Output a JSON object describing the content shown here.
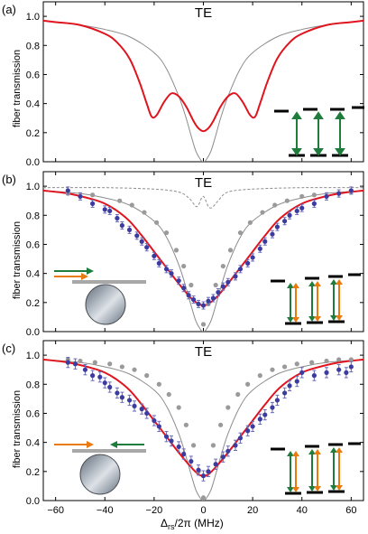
{
  "figure": {
    "xlabel_main": "Δ",
    "xlabel_sub": "rs",
    "xlabel_rest": "/2π (MHz)",
    "ylabel": "fiber transmission",
    "x_ticks": [
      "−60",
      "−40",
      "−20",
      "0",
      "20",
      "40",
      "60"
    ],
    "y_ticks": [
      "0.0",
      "0.2",
      "0.4",
      "0.6",
      "0.8",
      "1.0"
    ],
    "colors": {
      "red": "#e0141e",
      "gray": "#8c8c8c",
      "blue": "#3c3ca0",
      "green": "#1e7d3c",
      "orange": "#e87a10"
    }
  },
  "chart_data": [
    {
      "type": "line",
      "panel_label": "(a)",
      "title": "TE",
      "ylabel": "fiber transmission",
      "xlim": [
        -65,
        65
      ],
      "ylim": [
        0,
        1.1
      ],
      "series": [
        {
          "style": "gray-thin",
          "x": [
            -65,
            -60,
            -50,
            -40,
            -30,
            -20,
            -15,
            -10,
            -7,
            -5,
            -3,
            -1,
            0,
            1,
            3,
            5,
            7,
            10,
            15,
            20,
            30,
            40,
            50,
            60,
            65
          ],
          "y": [
            0.97,
            0.96,
            0.94,
            0.91,
            0.86,
            0.75,
            0.64,
            0.45,
            0.3,
            0.18,
            0.07,
            0.01,
            0,
            0.01,
            0.07,
            0.18,
            0.3,
            0.45,
            0.64,
            0.75,
            0.86,
            0.91,
            0.94,
            0.96,
            0.97
          ]
        },
        {
          "style": "red-thick",
          "x": [
            -65,
            -60,
            -50,
            -40,
            -35,
            -30,
            -26,
            -23,
            -21,
            -19,
            -16,
            -13,
            -10,
            -7,
            -4,
            -2,
            0,
            2,
            4,
            7,
            10,
            13,
            16,
            19,
            21,
            23,
            26,
            30,
            35,
            40,
            50,
            60,
            65
          ],
          "y": [
            0.97,
            0.96,
            0.94,
            0.88,
            0.82,
            0.71,
            0.55,
            0.4,
            0.31,
            0.32,
            0.41,
            0.47,
            0.45,
            0.38,
            0.28,
            0.23,
            0.21,
            0.23,
            0.28,
            0.38,
            0.45,
            0.47,
            0.41,
            0.32,
            0.31,
            0.4,
            0.55,
            0.71,
            0.82,
            0.88,
            0.94,
            0.96,
            0.97
          ]
        }
      ]
    },
    {
      "type": "scatter",
      "panel_label": "(b)",
      "title": "TE",
      "ylabel": "fiber transmission",
      "xlim": [
        -65,
        65
      ],
      "ylim": [
        0,
        1.1
      ],
      "series": [
        {
          "style": "gray-dashed",
          "x": [
            -65,
            -40,
            -20,
            -10,
            -6,
            -4,
            -3,
            -2,
            -1,
            0,
            1,
            2,
            3,
            4,
            6,
            10,
            20,
            40,
            65
          ],
          "y": [
            0.99,
            0.99,
            0.98,
            0.96,
            0.92,
            0.88,
            0.86,
            0.87,
            0.91,
            0.93,
            0.9,
            0.86,
            0.85,
            0.86,
            0.9,
            0.96,
            0.98,
            0.99,
            0.99
          ]
        },
        {
          "style": "gray-thin",
          "x": [
            -65,
            -50,
            -40,
            -30,
            -20,
            -15,
            -10,
            -7,
            -5,
            -3,
            -1,
            0,
            1,
            3,
            5,
            7,
            10,
            15,
            20,
            30,
            40,
            50,
            65
          ],
          "y": [
            0.97,
            0.95,
            0.92,
            0.87,
            0.76,
            0.65,
            0.46,
            0.3,
            0.18,
            0.07,
            0.01,
            0,
            0.01,
            0.07,
            0.18,
            0.3,
            0.46,
            0.65,
            0.76,
            0.87,
            0.92,
            0.95,
            0.97
          ]
        },
        {
          "style": "red-thick",
          "x": [
            -65,
            -55,
            -45,
            -40,
            -35,
            -30,
            -25,
            -20,
            -15,
            -10,
            -5,
            -2,
            0,
            2,
            5,
            10,
            15,
            20,
            25,
            30,
            35,
            40,
            45,
            55,
            65
          ],
          "y": [
            0.97,
            0.95,
            0.91,
            0.88,
            0.83,
            0.76,
            0.66,
            0.55,
            0.44,
            0.33,
            0.23,
            0.19,
            0.18,
            0.19,
            0.23,
            0.33,
            0.44,
            0.55,
            0.66,
            0.76,
            0.83,
            0.88,
            0.91,
            0.95,
            0.97
          ]
        },
        {
          "style": "gray-points",
          "x": [
            -55,
            -45,
            -34,
            -29,
            -24,
            -19,
            -15,
            -11,
            -8,
            -5,
            -2,
            0,
            2,
            5,
            8,
            11,
            15,
            19,
            24,
            29,
            34,
            40,
            45,
            55,
            60
          ],
          "y": [
            0.95,
            0.94,
            0.9,
            0.87,
            0.82,
            0.75,
            0.68,
            0.56,
            0.45,
            0.32,
            0.19,
            0.05,
            0.19,
            0.32,
            0.45,
            0.56,
            0.68,
            0.75,
            0.82,
            0.87,
            0.9,
            0.93,
            0.94,
            0.95,
            0.96
          ]
        },
        {
          "style": "blue-errorbars",
          "x": [
            -55,
            -50,
            -45,
            -40,
            -38,
            -35,
            -33,
            -30,
            -27,
            -25,
            -23,
            -20,
            -18,
            -15,
            -13,
            -10,
            -8,
            -6,
            -4,
            -2,
            0,
            2,
            4,
            6,
            8,
            10,
            13,
            15,
            18,
            20,
            23,
            25,
            28,
            30,
            33,
            35,
            38,
            40,
            45,
            50,
            55,
            60
          ],
          "y": [
            0.97,
            0.93,
            0.88,
            0.84,
            0.83,
            0.78,
            0.73,
            0.7,
            0.66,
            0.62,
            0.58,
            0.52,
            0.47,
            0.43,
            0.4,
            0.35,
            0.3,
            0.25,
            0.22,
            0.19,
            0.18,
            0.21,
            0.23,
            0.27,
            0.31,
            0.34,
            0.38,
            0.43,
            0.47,
            0.51,
            0.57,
            0.62,
            0.67,
            0.72,
            0.76,
            0.8,
            0.83,
            0.85,
            0.88,
            0.93,
            0.95,
            0.97
          ],
          "err": 0.025
        }
      ]
    },
    {
      "type": "scatter",
      "panel_label": "(c)",
      "title": "TE",
      "ylabel": "fiber transmission",
      "xlim": [
        -65,
        65
      ],
      "ylim": [
        0,
        1.1
      ],
      "series": [
        {
          "style": "gray-thin",
          "x": [
            -65,
            -50,
            -40,
            -30,
            -20,
            -15,
            -10,
            -7,
            -5,
            -3,
            -1,
            0,
            1,
            3,
            5,
            7,
            10,
            15,
            20,
            30,
            40,
            50,
            65
          ],
          "y": [
            0.97,
            0.95,
            0.92,
            0.87,
            0.76,
            0.65,
            0.46,
            0.3,
            0.18,
            0.07,
            0.01,
            0,
            0.01,
            0.07,
            0.18,
            0.3,
            0.46,
            0.65,
            0.76,
            0.87,
            0.92,
            0.95,
            0.97
          ]
        },
        {
          "style": "red-thick",
          "x": [
            -65,
            -55,
            -45,
            -40,
            -35,
            -30,
            -25,
            -20,
            -15,
            -10,
            -5,
            -2,
            0,
            2,
            5,
            10,
            15,
            20,
            25,
            30,
            35,
            40,
            45,
            55,
            65
          ],
          "y": [
            0.97,
            0.95,
            0.91,
            0.88,
            0.83,
            0.76,
            0.66,
            0.55,
            0.44,
            0.33,
            0.23,
            0.18,
            0.17,
            0.18,
            0.23,
            0.33,
            0.44,
            0.55,
            0.66,
            0.76,
            0.83,
            0.88,
            0.91,
            0.95,
            0.97
          ]
        },
        {
          "style": "gray-points",
          "x": [
            -55,
            -50,
            -44,
            -38,
            -33,
            -28,
            -23,
            -18,
            -14,
            -10,
            -7,
            -4,
            -2,
            0,
            2,
            4,
            7,
            10,
            14,
            18,
            23,
            28,
            33,
            38,
            44,
            50,
            55,
            60
          ],
          "y": [
            0.97,
            0.96,
            0.95,
            0.94,
            0.92,
            0.9,
            0.86,
            0.8,
            0.73,
            0.64,
            0.52,
            0.38,
            0.2,
            0.02,
            0.2,
            0.38,
            0.52,
            0.64,
            0.73,
            0.8,
            0.86,
            0.9,
            0.92,
            0.94,
            0.95,
            0.96,
            0.97,
            0.97
          ]
        },
        {
          "style": "blue-errorbars",
          "x": [
            -55,
            -52,
            -48,
            -45,
            -42,
            -40,
            -38,
            -35,
            -33,
            -30,
            -28,
            -25,
            -23,
            -20,
            -18,
            -15,
            -13,
            -10,
            -8,
            -5,
            -2,
            0,
            2,
            5,
            8,
            10,
            13,
            15,
            18,
            20,
            23,
            25,
            28,
            30,
            33,
            35,
            38,
            40,
            45,
            50,
            55,
            58,
            60
          ],
          "y": [
            0.95,
            0.94,
            0.9,
            0.86,
            0.85,
            0.81,
            0.78,
            0.74,
            0.71,
            0.69,
            0.65,
            0.63,
            0.6,
            0.55,
            0.51,
            0.44,
            0.41,
            0.37,
            0.32,
            0.27,
            0.21,
            0.17,
            0.2,
            0.25,
            0.3,
            0.34,
            0.38,
            0.43,
            0.48,
            0.51,
            0.56,
            0.59,
            0.64,
            0.69,
            0.74,
            0.79,
            0.82,
            0.88,
            0.86,
            0.88,
            0.9,
            0.88,
            0.92
          ],
          "err": 0.035
        }
      ]
    }
  ]
}
